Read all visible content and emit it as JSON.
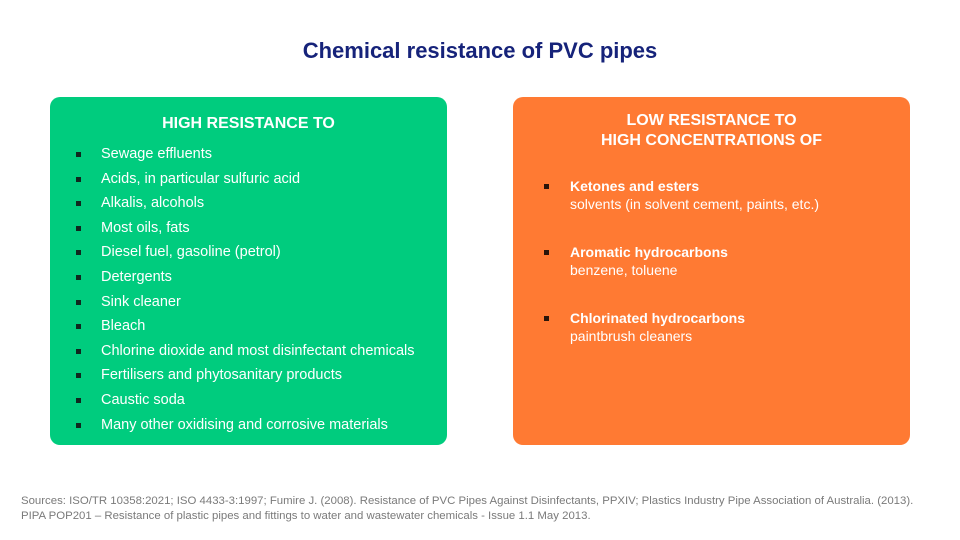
{
  "title": "Chemical resistance of PVC pipes",
  "high": {
    "heading": "HIGH RESISTANCE TO",
    "items": [
      "Sewage effluents",
      "Acids, in particular sulfuric acid",
      "Alkalis, alcohols",
      "Most oils, fats",
      "Diesel fuel, gasoline (petrol)",
      "Detergents",
      "Sink cleaner",
      "Bleach",
      "Chlorine dioxide and most disinfectant chemicals",
      "Fertilisers and phytosanitary products",
      "Caustic soda",
      "Many other oxidising and corrosive materials"
    ]
  },
  "low": {
    "heading_line1": "LOW RESISTANCE TO",
    "heading_line2": "HIGH CONCENTRATIONS OF",
    "items": [
      {
        "name": "Ketones and esters",
        "desc": "solvents (in solvent cement, paints, etc.)"
      },
      {
        "name": "Aromatic hydrocarbons",
        "desc": "benzene, toluene"
      },
      {
        "name": "Chlorinated hydrocarbons",
        "desc": "paintbrush cleaners"
      }
    ]
  },
  "sources": "Sources: ISO/TR 10358:2021; ISO 4433-3:1997; Fumire J. (2008). Resistance of PVC Pipes Against Disinfectants, PPXIV; Plastics Industry Pipe Association of Australia. (2013). PIPA POP201 – Resistance of plastic pipes and fittings to water and wastewater chemicals - Issue 1.1 May 2013.",
  "colors": {
    "title": "#16237a",
    "high_card": "#00cc7e",
    "low_card": "#ff7a33",
    "sources_text": "#7a7a7a"
  }
}
